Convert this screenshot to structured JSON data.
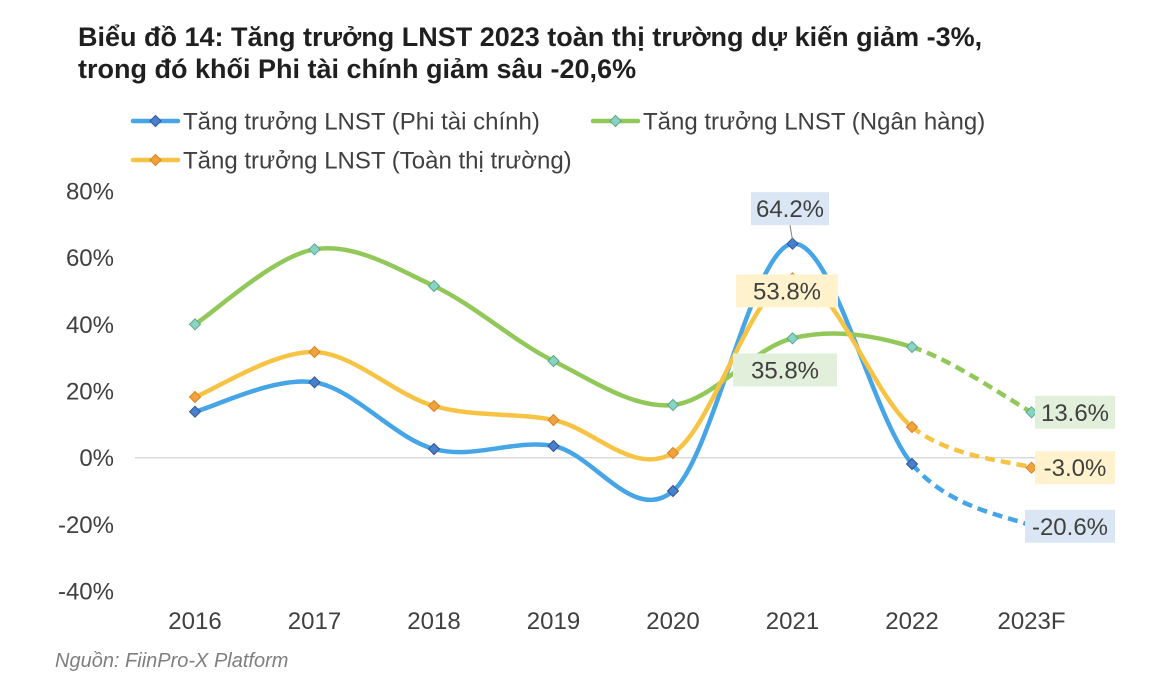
{
  "source": "Nguồn: FiinPro-X Platform",
  "colors": {
    "title": "#1F1F1F",
    "text": "#404040",
    "source": "#7F7F7F",
    "zero_line": "#D9D9D9",
    "leader_line": "#7F7F7F",
    "background": "#FFFFFF"
  },
  "chart_data": {
    "type": "line",
    "title": [
      "Biểu đồ 14: Tăng trưởng LNST 2023 toàn thị trường dự kiến giảm -3%,",
      "trong đó khối Phi tài chính giảm sâu -20,6%"
    ],
    "xlabel": "",
    "ylabel": "",
    "categories": [
      "2016",
      "2017",
      "2018",
      "2019",
      "2020",
      "2021",
      "2022",
      "2023F"
    ],
    "ylim": [
      -40,
      80
    ],
    "y_ticks": [
      80,
      60,
      40,
      20,
      0,
      -20,
      -40
    ],
    "y_tick_labels": [
      "80%",
      "60%",
      "40%",
      "20%",
      "0%",
      "-20%",
      "-40%"
    ],
    "grid": false,
    "smooth": true,
    "legend_position": "top-left",
    "forecast_categories": [
      "2023F"
    ],
    "forecast_dashed": true,
    "series": [
      {
        "name": "Tăng trưởng LNST (Phi tài chính)",
        "color": "#45A5E6",
        "marker_color": "#4A7FCC",
        "marker_stroke": "#2F5597",
        "label_bg": "#DAE6F3",
        "values": [
          13.8,
          22.6,
          2.6,
          3.5,
          -10.0,
          64.2,
          -1.9,
          -20.6
        ],
        "data_labels": {
          "2021": "64.2%",
          "2023F": "-20.6%"
        }
      },
      {
        "name": "Tăng trưởng LNST (Ngân hàng)",
        "color": "#92C85A",
        "marker_color": "#8AD3C4",
        "marker_stroke": "#57A889",
        "label_bg": "#E2EFDA",
        "values": [
          40.0,
          62.5,
          51.5,
          29.0,
          15.8,
          35.8,
          33.2,
          13.6
        ],
        "data_labels": {
          "2021": "35.8%",
          "2023F": "13.6%"
        }
      },
      {
        "name": "Tăng trưởng LNST (Toàn thị trường)",
        "color": "#F7C344",
        "marker_color": "#F0A23C",
        "marker_stroke": "#D8832A",
        "label_bg": "#FFF2CC",
        "values": [
          18.2,
          31.7,
          15.5,
          11.3,
          1.4,
          53.8,
          9.2,
          -3.0
        ],
        "data_labels": {
          "2021": "53.8%",
          "2023F": "-3.0%"
        }
      }
    ]
  }
}
